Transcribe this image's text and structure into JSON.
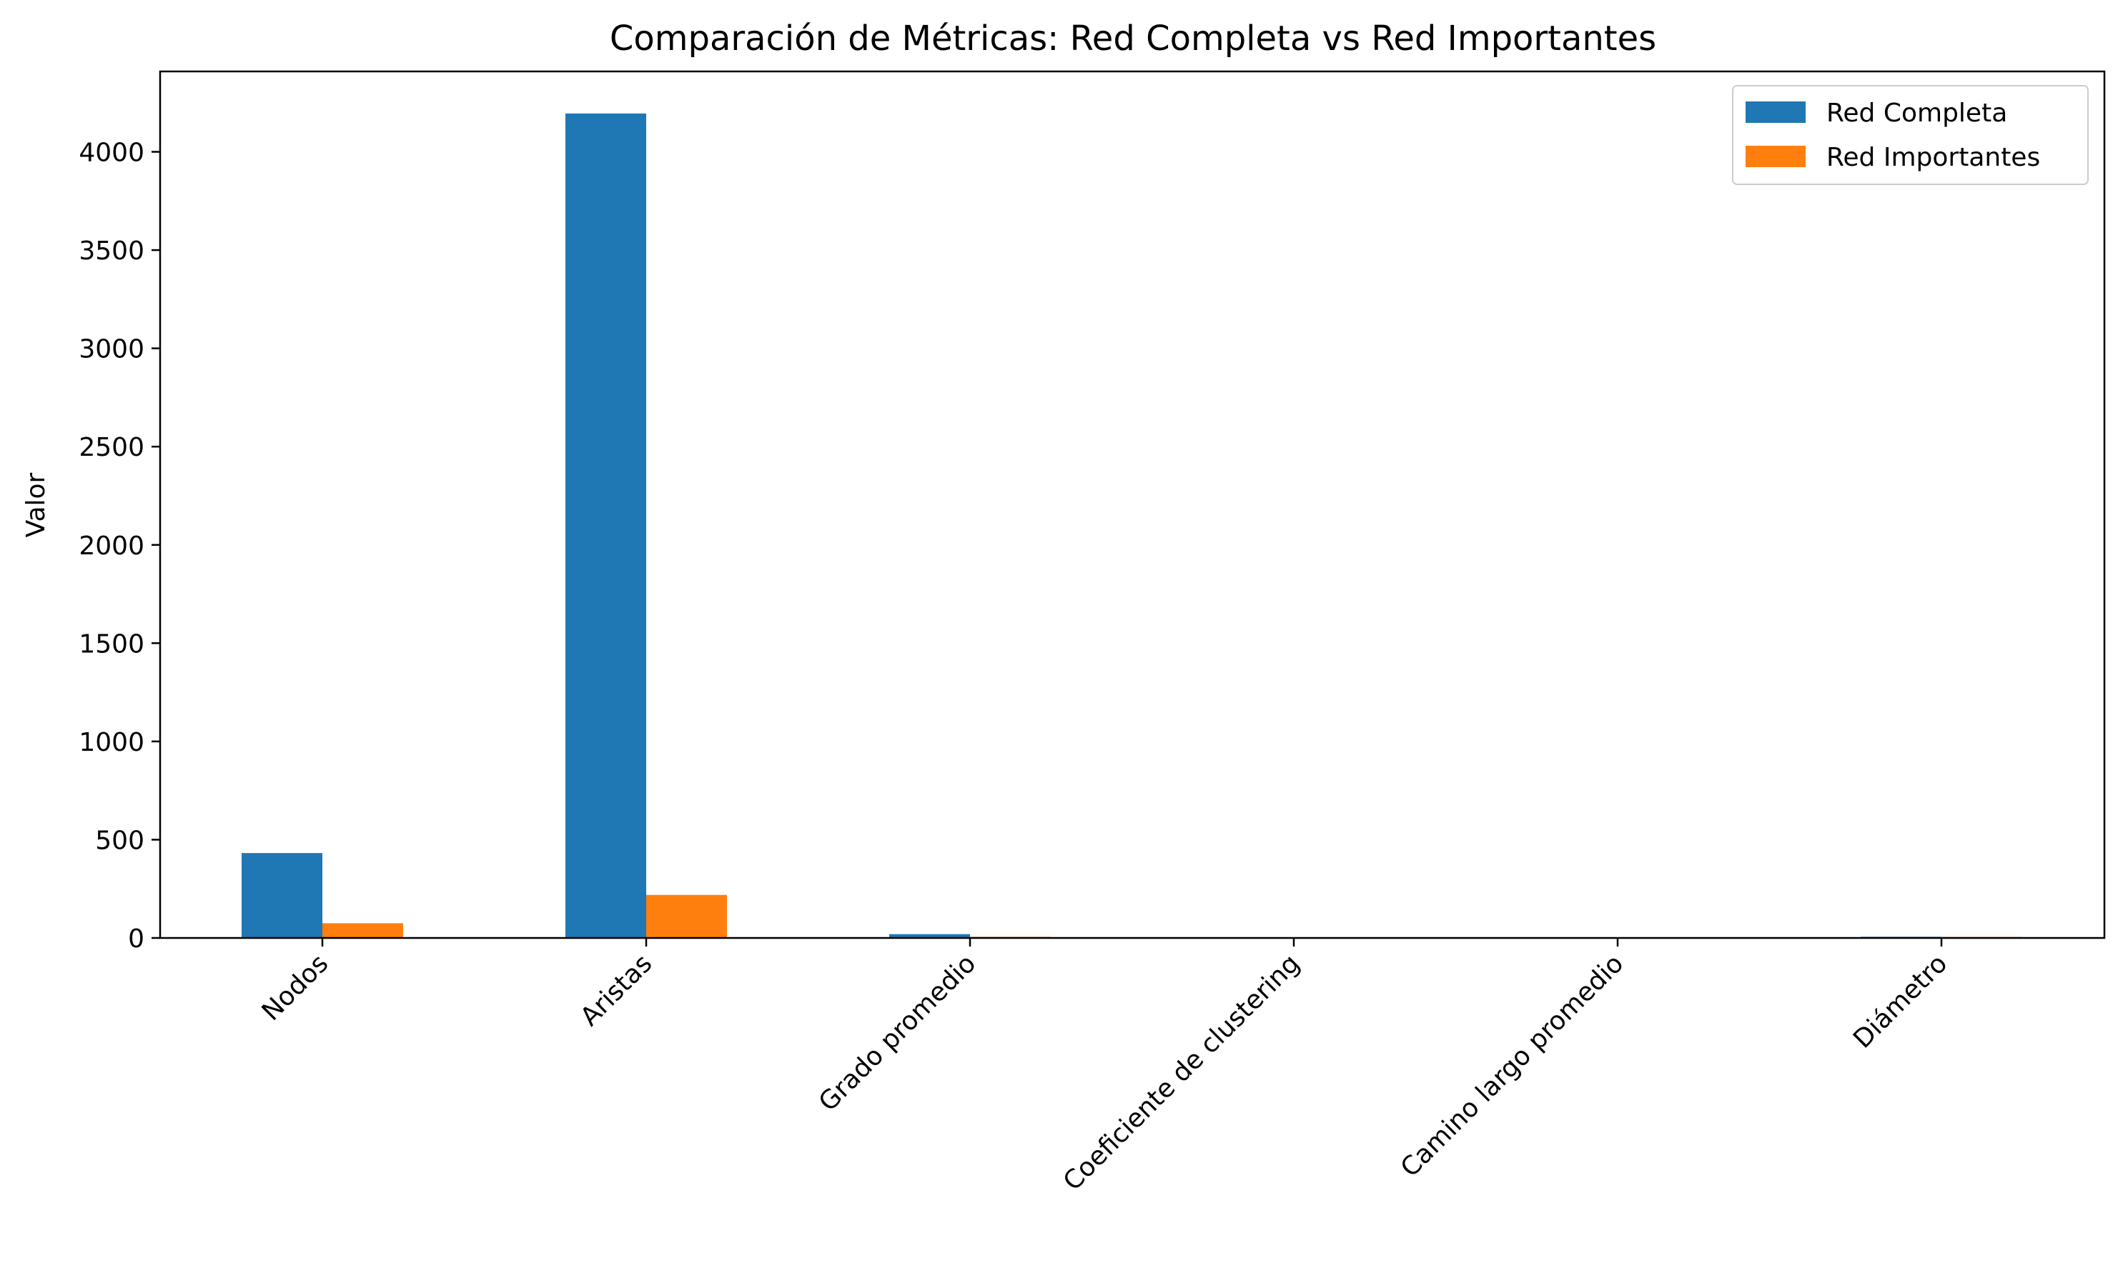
{
  "chart_data": {
    "type": "bar",
    "title": "Comparación de Métricas: Red Completa vs Red Importantes",
    "xlabel": "",
    "ylabel": "Valor",
    "categories": [
      "Nodos",
      "Aristas",
      "Grado promedio",
      "Coeficiente de clustering",
      "Camino largo promedio",
      "Diámetro"
    ],
    "series": [
      {
        "name": "Red Completa",
        "color": "#1f77b4",
        "values": [
          432,
          4195,
          19.4,
          0.5,
          2.5,
          6
        ]
      },
      {
        "name": "Red Importantes",
        "color": "#ff7f0e",
        "values": [
          75,
          219,
          5.8,
          0.6,
          2.3,
          5
        ]
      }
    ],
    "yticks": [
      "0",
      "500",
      "1000",
      "1500",
      "2000",
      "2500",
      "3000",
      "3500",
      "4000"
    ],
    "ylim": [
      0,
      4409
    ],
    "grid": false,
    "legend": "top-right"
  }
}
